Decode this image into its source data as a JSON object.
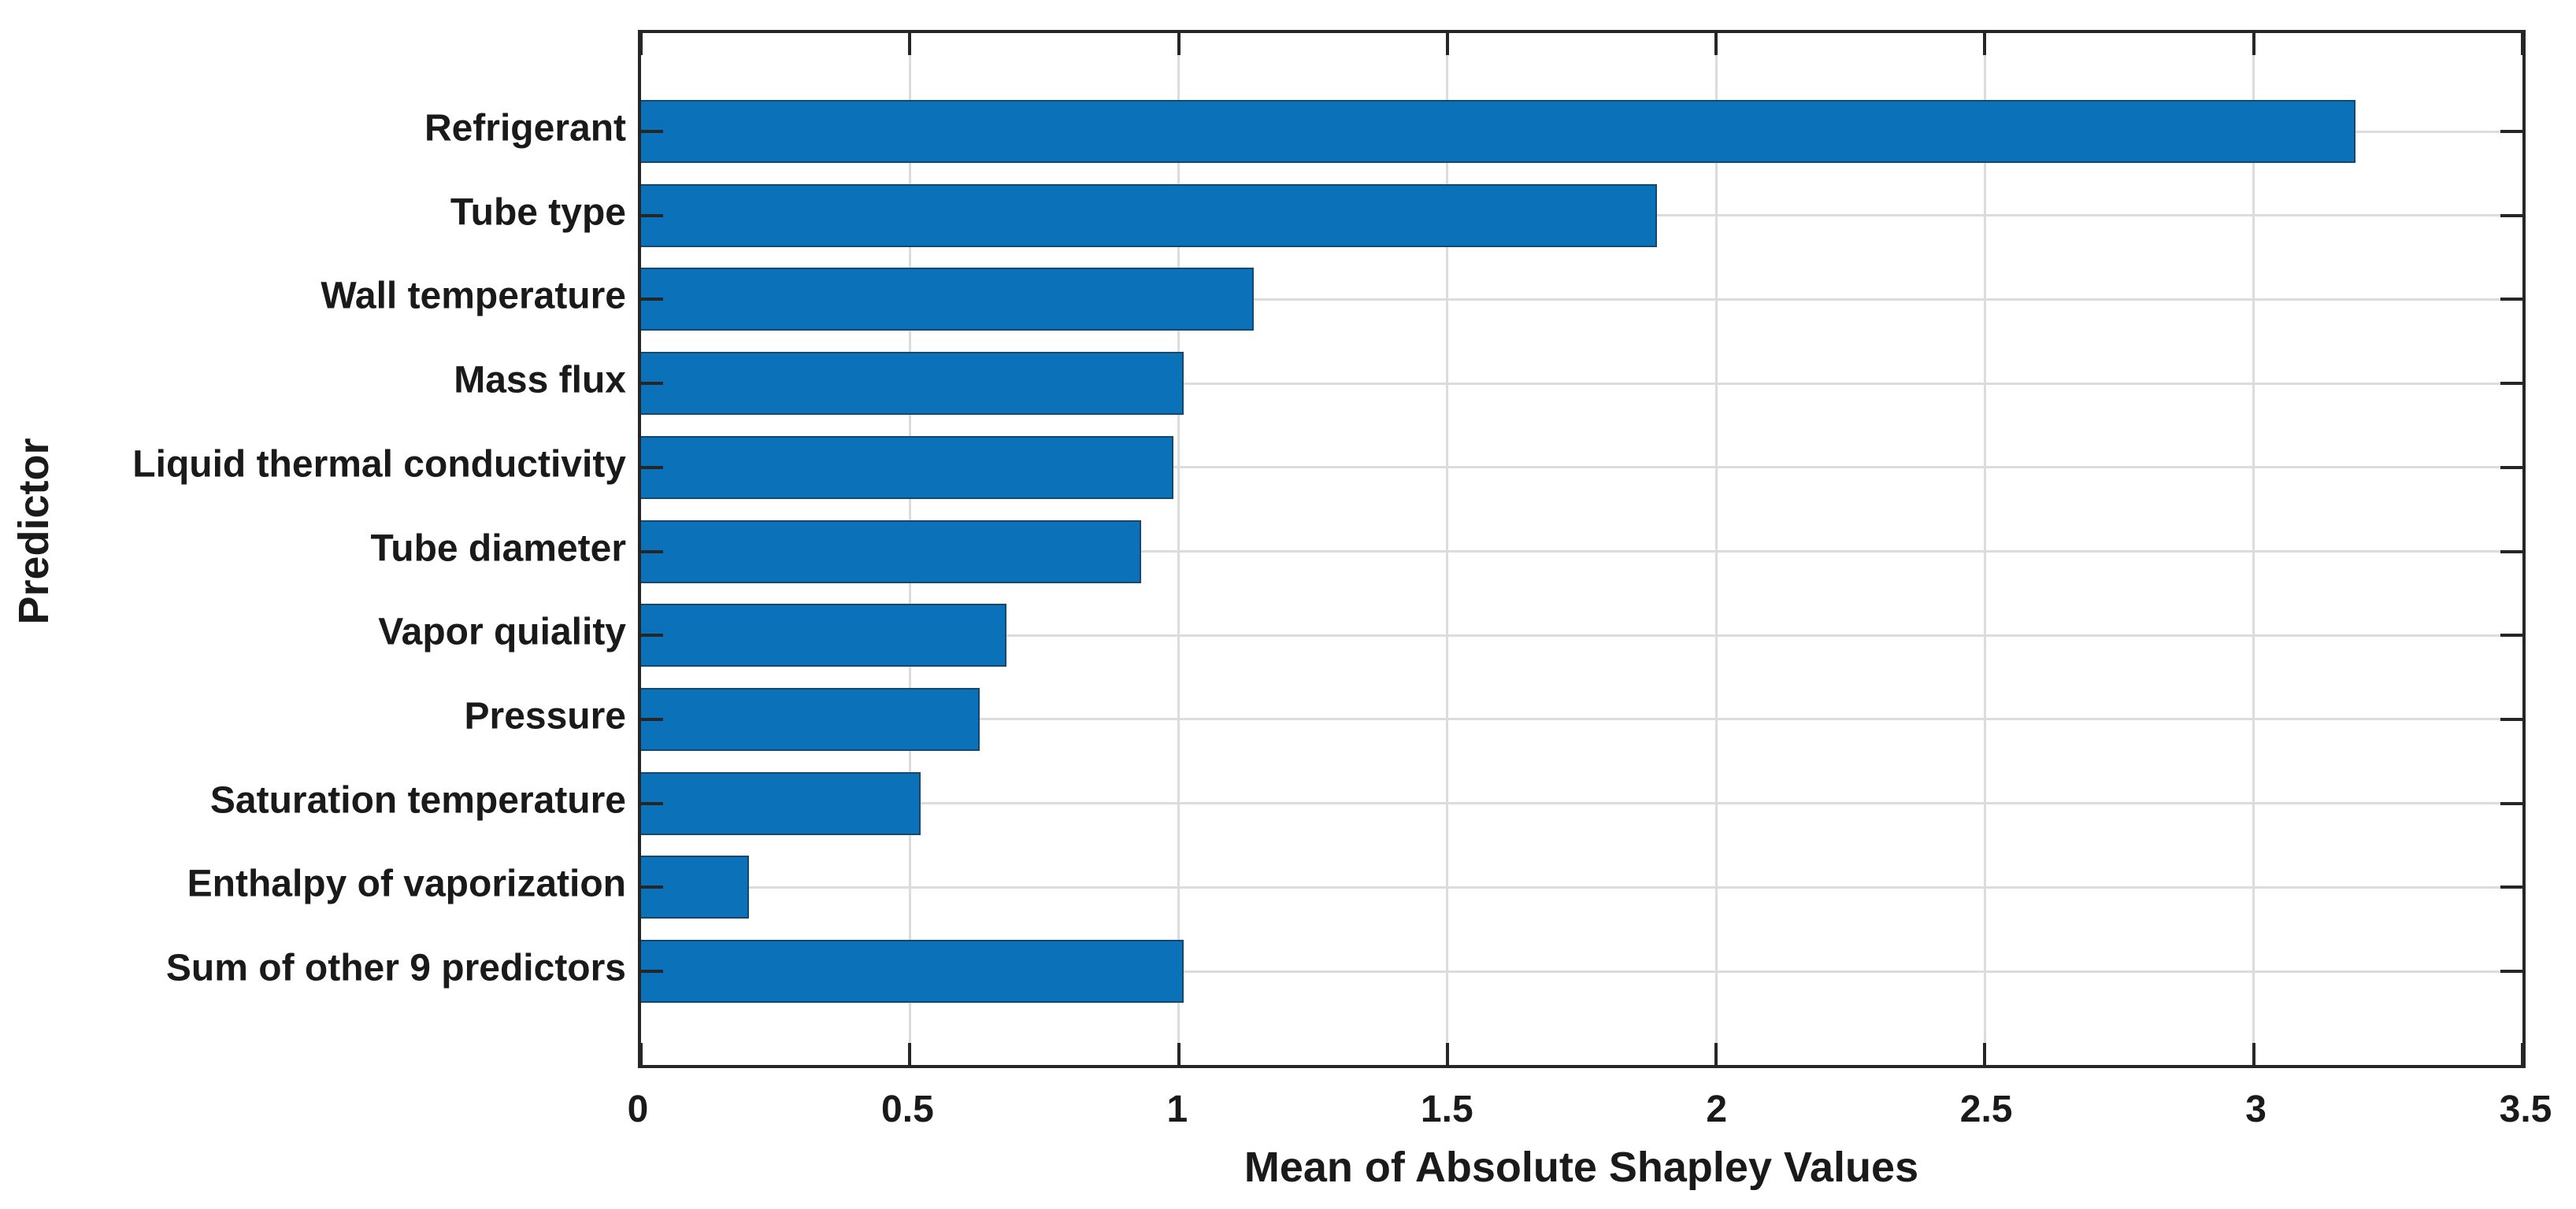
{
  "chart_data": {
    "type": "bar",
    "orientation": "horizontal",
    "title": "",
    "xlabel": "Mean of Absolute Shapley Values",
    "ylabel": "Predictor",
    "categories": [
      "Refrigerant",
      "Tube type",
      "Wall temperature",
      "Mass flux",
      "Liquid thermal conductivity",
      "Tube diameter",
      "Vapor quiality",
      "Pressure",
      "Saturation temperature",
      "Enthalpy of vaporization",
      "Sum of other 9 predictors"
    ],
    "values": [
      3.19,
      1.89,
      1.14,
      1.01,
      0.99,
      0.93,
      0.68,
      0.63,
      0.52,
      0.2,
      1.01
    ],
    "xlim": [
      0,
      3.5
    ],
    "xticks": [
      0,
      0.5,
      1,
      1.5,
      2,
      2.5,
      3,
      3.5
    ],
    "xtick_labels": [
      "0",
      "0.5",
      "1",
      "1.5",
      "2",
      "2.5",
      "3",
      "3.5"
    ],
    "grid": true,
    "legend_position": "none",
    "colors": {
      "bar_fill": "#0B72BA",
      "bar_edge": "#14486F",
      "grid_line": "#DCDCDC",
      "axis_line": "#262626",
      "background": "#FFFFFF"
    }
  }
}
